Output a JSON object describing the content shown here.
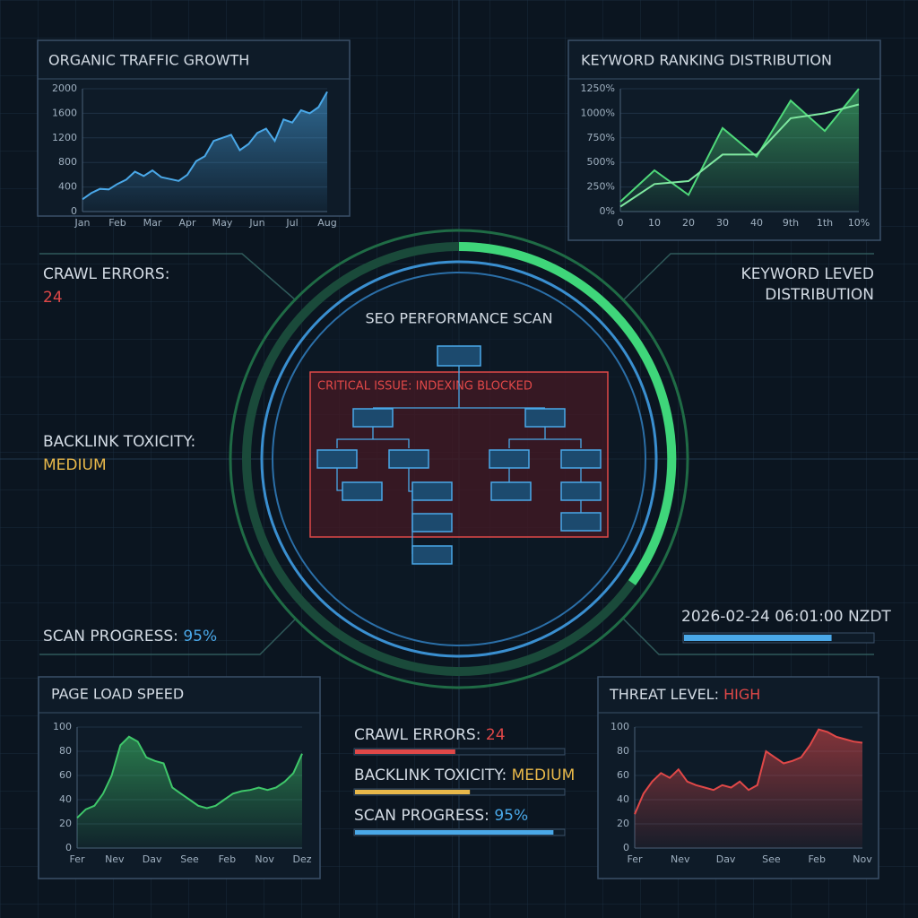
{
  "traffic": {
    "type": "line",
    "title": "ORGANIC TRAFFIC GROWTH",
    "color": "#4aa8e8",
    "xticks": [
      "Jan",
      "Feb",
      "Mar",
      "Apr",
      "May",
      "Jun",
      "Jul",
      "Aug"
    ],
    "ylim": [
      0,
      2000
    ],
    "yticks": [
      0,
      400,
      800,
      1200,
      1600,
      2000
    ],
    "values": [
      200,
      300,
      370,
      360,
      450,
      520,
      650,
      580,
      670,
      560,
      530,
      500,
      600,
      820,
      900,
      1150,
      1200,
      1250,
      1000,
      1100,
      1280,
      1350,
      1150,
      1500,
      1450,
      1650,
      1600,
      1700,
      1950
    ]
  },
  "keywords": {
    "type": "line",
    "title": "KEYWORD RANKING DISTRIBUTION",
    "xticks": [
      "0",
      "10",
      "20",
      "30",
      "40",
      "9th",
      "1th",
      "10%"
    ],
    "ylim": [
      0,
      1250
    ],
    "yticks": [
      {
        "value": 0,
        "label": "0%"
      },
      {
        "value": 250,
        "label": "250%"
      },
      {
        "value": 500,
        "label": "500%"
      },
      {
        "value": 750,
        "label": "750%"
      },
      {
        "value": 1000,
        "label": "1000%"
      },
      {
        "value": 1250,
        "label": "1250%"
      }
    ],
    "series": [
      {
        "color": "#4fd97a",
        "values": [
          100,
          420,
          170,
          850,
          560,
          1130,
          820,
          1250
        ]
      },
      {
        "color": "#7fe8a0",
        "values": [
          50,
          280,
          310,
          580,
          580,
          950,
          1000,
          1090
        ]
      }
    ]
  },
  "page_load": {
    "type": "line",
    "title": "PAGE LOAD SPEED",
    "color": "#3fc76a",
    "xticks": [
      "Fer",
      "Nev",
      "Dav",
      "See",
      "Feb",
      "Nov",
      "Dez"
    ],
    "ylim": [
      0,
      100
    ],
    "yticks": [
      0,
      20,
      40,
      60,
      80,
      100
    ],
    "values": [
      25,
      32,
      35,
      45,
      60,
      85,
      92,
      88,
      75,
      72,
      70,
      50,
      45,
      40,
      35,
      33,
      35,
      40,
      45,
      47,
      48,
      50,
      48,
      50,
      55,
      62,
      78
    ]
  },
  "threat": {
    "type": "line",
    "title": "THREAT LEVEL:",
    "title_value": "HIGH",
    "color": "#e04848",
    "xticks": [
      "Fer",
      "Nev",
      "Dav",
      "See",
      "Feb",
      "Nov"
    ],
    "ylim": [
      0,
      100
    ],
    "yticks": [
      0,
      20,
      40,
      60,
      80,
      100
    ],
    "values": [
      28,
      45,
      55,
      62,
      58,
      65,
      55,
      52,
      50,
      48,
      52,
      50,
      55,
      48,
      52,
      80,
      75,
      70,
      72,
      75,
      85,
      98,
      96,
      92,
      90,
      88,
      87
    ]
  },
  "status": {
    "crawl_errors": {
      "label": "CRAWL ERRORS:",
      "value": "24"
    },
    "keyword_level": [
      "KEYWORD LEVED",
      "DISTRIBUTION"
    ],
    "backlink_toxicity": {
      "label": "BACKLINK TOXICITY:",
      "value": "MEDIUM"
    },
    "scan_progress": {
      "label": "SCAN PROGRESS:",
      "value": "95%"
    }
  },
  "center": {
    "title": "SEO PERFORMANCE SCAN",
    "alert": "CRITICAL ISSUE: INDEXING BLOCKED"
  },
  "timestamp": {
    "text": "2026-02-24 06:01:00 NZDT",
    "progress": 78
  },
  "summary": [
    {
      "label": "CRAWL ERRORS:",
      "value": "24",
      "fill": 48,
      "color": "#e04848"
    },
    {
      "label": "BACKLINK TOXICITY:",
      "value": "MEDIUM",
      "fill": 55,
      "color": "#e8b84a"
    },
    {
      "label": "SCAN PROGRESS:",
      "value": "95%",
      "fill": 95,
      "color": "#4aa8e8"
    }
  ]
}
